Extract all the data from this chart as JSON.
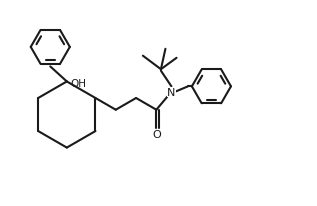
{
  "bg_color": "#ffffff",
  "line_color": "#1a1a1a",
  "line_width": 1.5,
  "text_color": "#1a1a1a",
  "label_N": "N",
  "label_O": "O",
  "label_OH": "OH",
  "figsize": [
    3.17,
    2.07
  ],
  "dpi": 100,
  "xlim": [
    0,
    10.5
  ],
  "ylim": [
    0,
    6.8
  ]
}
